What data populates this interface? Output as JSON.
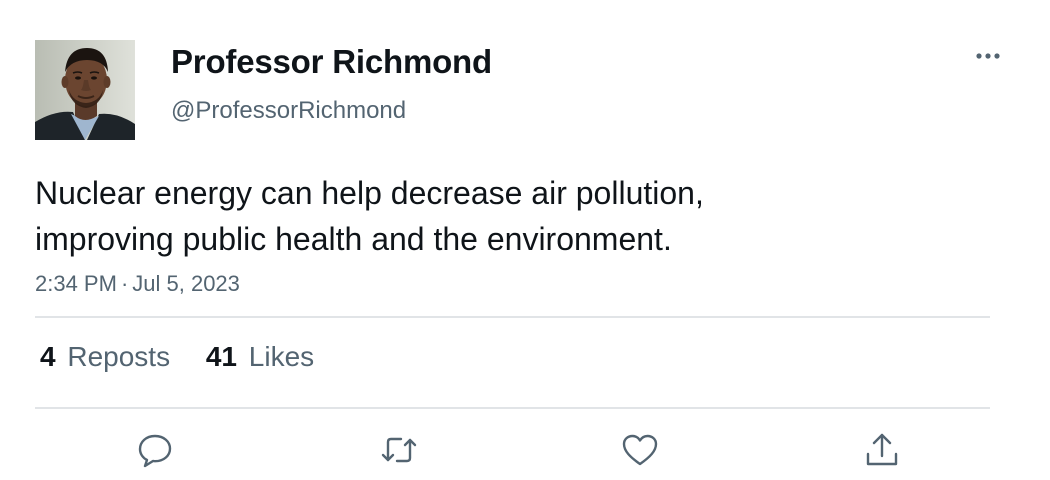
{
  "user": {
    "display_name": "Professor Richmond",
    "handle": "@ProfessorRichmond",
    "avatar_icon": "profile-photo"
  },
  "tweet": {
    "text_lines": [
      "Nuclear energy can help decrease air pollution,",
      "improving public health and the environment."
    ],
    "time": "2:34 PM",
    "separator": "·",
    "date": "Jul 5, 2023"
  },
  "stats": {
    "reposts_count": "4",
    "reposts_label": "Reposts",
    "likes_count": "41",
    "likes_label": "Likes"
  },
  "actions": {
    "reply_icon": "speech-bubble-icon",
    "repost_icon": "repost-arrows-icon",
    "like_icon": "heart-icon",
    "share_icon": "share-upload-icon"
  },
  "colors": {
    "primary_text": "#0f1419",
    "secondary_text": "#536471",
    "divider": "#e1e4e7"
  }
}
